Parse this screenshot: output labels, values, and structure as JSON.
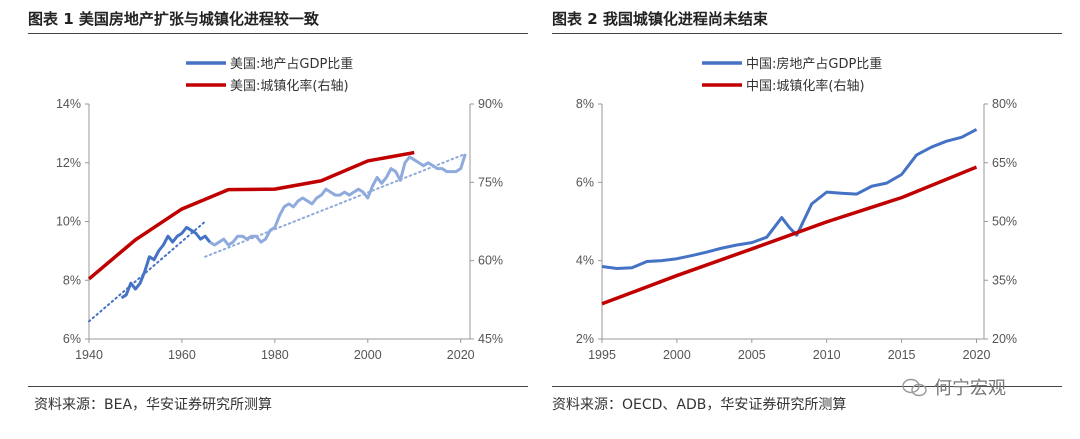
{
  "left": {
    "title": "图表 1 美国房地产扩张与城镇化进程较一致",
    "source": "资料来源：BEA，华安证券研究所测算"
  },
  "right": {
    "title": "图表 2 我国城镇化进程尚未结束",
    "source": "资料来源：OECD、ADB，华安证券研究所测算"
  },
  "watermark": "何宁宏观",
  "colors": {
    "blue": "#4472c4",
    "lightblue": "#8faadc",
    "red": "#c00000"
  },
  "chart_data": [
    {
      "type": "line",
      "title": "图表 1 美国房地产扩张与城镇化进程较一致",
      "x_ticks": [
        "1940",
        "1960",
        "1980",
        "2000",
        "2020"
      ],
      "xlim": [
        1940,
        2022
      ],
      "y_left_ticks": [
        "6%",
        "8%",
        "10%",
        "12%",
        "14%"
      ],
      "ylim_left": [
        6,
        14
      ],
      "y_right_ticks": [
        "45%",
        "60%",
        "75%",
        "90%"
      ],
      "ylim_right": [
        45,
        90
      ],
      "legend": [
        "美国:地产占GDP比重",
        "美国:城镇化率(右轴)"
      ],
      "series": [
        {
          "name": "美国:地产占GDP比重",
          "axis": "left",
          "x": [
            1947,
            1948,
            1949,
            1950,
            1951,
            1952,
            1953,
            1954,
            1955,
            1956,
            1957,
            1958,
            1959,
            1960,
            1961,
            1962,
            1963,
            1964,
            1965,
            1966,
            1967,
            1968,
            1969,
            1970,
            1971,
            1972,
            1973,
            1974,
            1975,
            1976,
            1977,
            1978,
            1979,
            1980,
            1981,
            1982,
            1983,
            1984,
            1985,
            1986,
            1987,
            1988,
            1989,
            1990,
            1991,
            1992,
            1993,
            1994,
            1995,
            1996,
            1997,
            1998,
            1999,
            2000,
            2001,
            2002,
            2003,
            2004,
            2005,
            2006,
            2007,
            2008,
            2009,
            2010,
            2011,
            2012,
            2013,
            2014,
            2015,
            2016,
            2017,
            2018,
            2019,
            2020,
            2021
          ],
          "values": [
            7.4,
            7.5,
            7.9,
            7.7,
            7.9,
            8.3,
            8.8,
            8.7,
            9.0,
            9.2,
            9.5,
            9.3,
            9.5,
            9.6,
            9.8,
            9.7,
            9.6,
            9.4,
            9.5,
            9.3,
            9.2,
            9.3,
            9.4,
            9.2,
            9.3,
            9.5,
            9.5,
            9.4,
            9.5,
            9.5,
            9.3,
            9.4,
            9.7,
            9.8,
            10.2,
            10.5,
            10.6,
            10.5,
            10.7,
            10.8,
            10.7,
            10.6,
            10.8,
            10.9,
            11.1,
            11.0,
            10.9,
            10.9,
            11.0,
            10.9,
            11.0,
            11.1,
            11.0,
            10.8,
            11.2,
            11.5,
            11.3,
            11.5,
            11.8,
            11.7,
            11.4,
            12.0,
            12.2,
            12.1,
            12.0,
            11.9,
            12.0,
            11.9,
            11.8,
            11.8,
            11.7,
            11.7,
            11.7,
            11.8,
            12.3
          ],
          "color": "#4472c4",
          "after_1966_color": "#8faadc"
        },
        {
          "name": "美国:城镇化率(右轴)",
          "axis": "right",
          "x": [
            1940,
            1950,
            1960,
            1970,
            1980,
            1990,
            2000,
            2010
          ],
          "values": [
            56.5,
            64,
            69.9,
            73.6,
            73.7,
            75.3,
            79.1,
            80.7
          ],
          "color": "#c00000"
        },
        {
          "name": "trend",
          "axis": "left",
          "style": "dotted",
          "x": [
            1940,
            1965
          ],
          "values": [
            6.6,
            10.0
          ],
          "color": "#4472c4"
        },
        {
          "name": "trend-2",
          "axis": "left",
          "style": "dotted",
          "x": [
            1965,
            2021
          ],
          "values": [
            8.8,
            12.3
          ],
          "color": "#8faadc"
        }
      ]
    },
    {
      "type": "line",
      "title": "图表 2 我国城镇化进程尚未结束",
      "x_ticks": [
        "1995",
        "2000",
        "2005",
        "2010",
        "2015",
        "2020"
      ],
      "xlim": [
        1995,
        2020.5
      ],
      "y_left_ticks": [
        "2%",
        "4%",
        "6%",
        "8%"
      ],
      "ylim_left": [
        2,
        8
      ],
      "y_right_ticks": [
        "20%",
        "35%",
        "50%",
        "65%",
        "80%"
      ],
      "ylim_right": [
        20,
        80
      ],
      "legend": [
        "中国:房地产占GDP比重",
        "中国:城镇化率(右轴)"
      ],
      "series": [
        {
          "name": "中国:房地产占GDP比重",
          "axis": "left",
          "x": [
            1995,
            1996,
            1997,
            1998,
            1999,
            2000,
            2001,
            2002,
            2003,
            2004,
            2005,
            2006,
            2007,
            2007.5,
            2008,
            2009,
            2010,
            2011,
            2012,
            2013,
            2014,
            2015,
            2016,
            2017,
            2018,
            2019,
            2020
          ],
          "values": [
            3.85,
            3.8,
            3.82,
            3.98,
            4.0,
            4.05,
            4.13,
            4.22,
            4.32,
            4.4,
            4.46,
            4.6,
            5.1,
            4.85,
            4.65,
            5.45,
            5.75,
            5.72,
            5.7,
            5.9,
            5.98,
            6.2,
            6.7,
            6.9,
            7.05,
            7.15,
            7.35
          ],
          "color": "#4472c4"
        },
        {
          "name": "中国:城镇化率(右轴)",
          "axis": "right",
          "x": [
            1995,
            2000,
            2005,
            2010,
            2015,
            2020
          ],
          "values": [
            29.0,
            36.2,
            43.0,
            49.9,
            56.1,
            63.9
          ],
          "color": "#c00000"
        }
      ]
    }
  ]
}
